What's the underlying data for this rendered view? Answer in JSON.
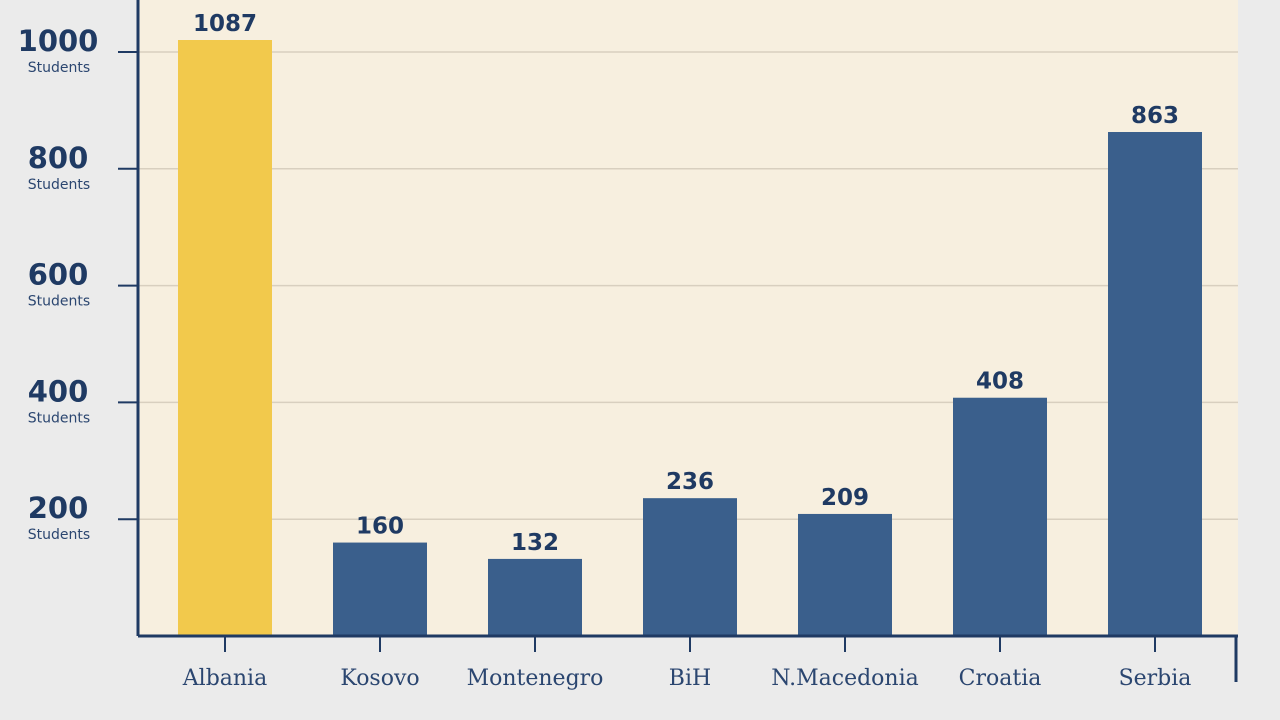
{
  "chart_data": {
    "type": "bar",
    "categories": [
      "Albania",
      "Kosovo",
      "Montenegro",
      "BiH",
      "N.Macedonia",
      "Croatia",
      "Serbia"
    ],
    "values": [
      1087,
      160,
      132,
      236,
      209,
      408,
      863
    ],
    "value_labels": [
      "1087",
      "160",
      "132",
      "236",
      "209",
      "408",
      "863"
    ],
    "y_ticks": [
      {
        "value": 200,
        "label": "200",
        "unit": "Students"
      },
      {
        "value": 400,
        "label": "400",
        "unit": "Students"
      },
      {
        "value": 600,
        "label": "600",
        "unit": "Students"
      },
      {
        "value": 800,
        "label": "800",
        "unit": "Students"
      },
      {
        "value": 1000,
        "label": "1000",
        "unit": "Students"
      }
    ],
    "ylim": [
      0,
      1000
    ],
    "grid": true,
    "colors": {
      "highlight": "#f2c94c",
      "bar": "#3a5f8c",
      "axis": "#1f3a63",
      "plot_bg": "#f7efdf",
      "grid": "#d8cfbf"
    },
    "highlight_index": 0
  }
}
